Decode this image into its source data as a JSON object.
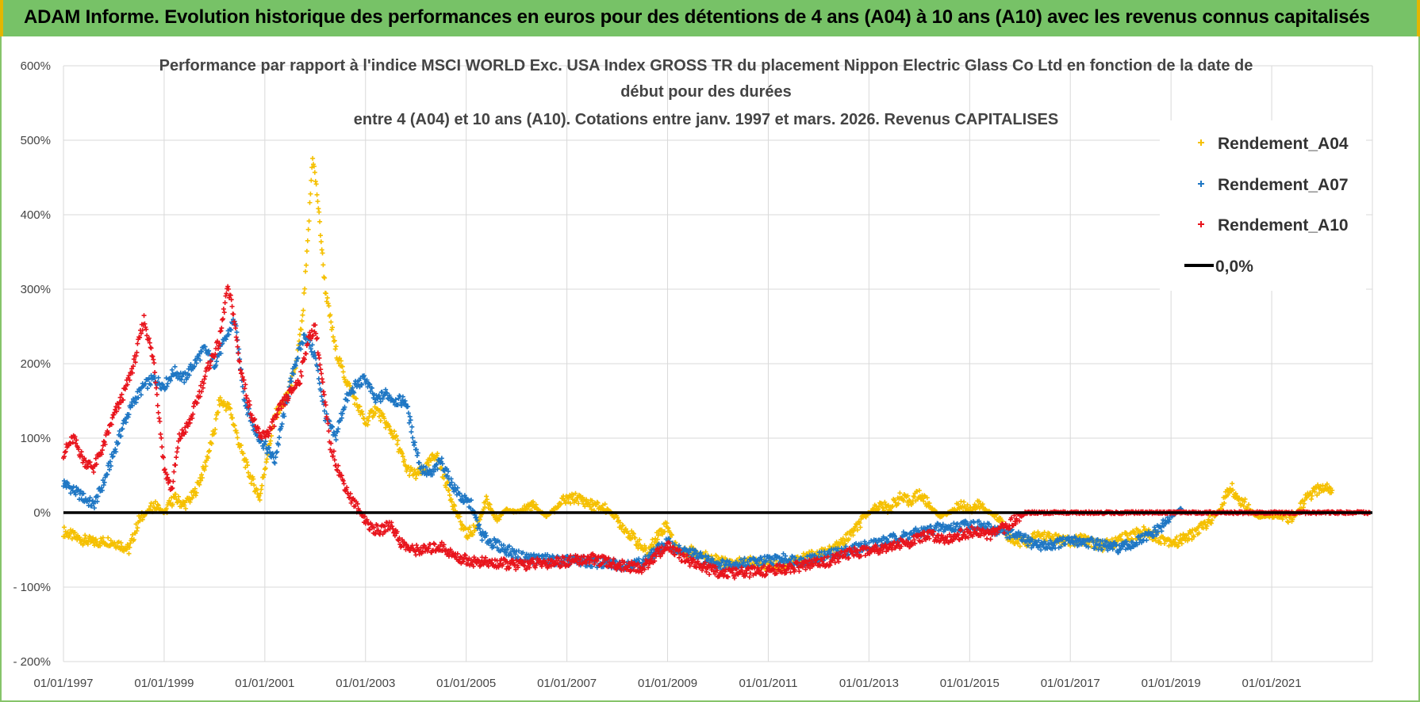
{
  "banner": {
    "title": "ADAM Informe. Evolution historique des performances en euros pour des détentions de 4 ans (A04) à 10 ans (A10) avec les revenus connus capitalisés"
  },
  "colors": {
    "banner_bg": "#77c267",
    "A04": "#f5c000",
    "A07": "#1f77c4",
    "A10": "#e8141c",
    "zero_line": "#000000"
  },
  "chart_data": {
    "type": "scatter",
    "title_lines": [
      "Performance par rapport à l'indice MSCI WORLD Exc. USA Index GROSS TR  du placement Nippon Electric Glass Co Ltd en fonction de la date de",
      "début pour des durées",
      "entre 4 (A04) et 10 ans (A10).  Cotations entre janv. 1997 et mars. 2026. Revenus CAPITALISES"
    ],
    "xlabel": "",
    "ylabel": "",
    "x_range": [
      1997.0,
      2023.0
    ],
    "x_ticks": [
      1997,
      1999,
      2001,
      2003,
      2005,
      2007,
      2009,
      2011,
      2013,
      2015,
      2017,
      2019,
      2021
    ],
    "x_tick_labels": [
      "01/01/1997",
      "01/01/1999",
      "01/01/2001",
      "01/01/2003",
      "01/01/2005",
      "01/01/2007",
      "01/01/2009",
      "01/01/2011",
      "01/01/2013",
      "01/01/2015",
      "01/01/2017",
      "01/01/2019",
      "01/01/2021"
    ],
    "ylim": [
      -200,
      600
    ],
    "y_ticks": [
      -200,
      -100,
      0,
      100,
      200,
      300,
      400,
      500,
      600
    ],
    "y_tick_labels": [
      "- 200%",
      "- 100%",
      "0%",
      "100%",
      "200%",
      "300%",
      "400%",
      "500%",
      "600%"
    ],
    "grid": true,
    "legend_position": "top-right",
    "series": [
      {
        "name": "Rendement_A04",
        "marker": "+",
        "color": "#f5c000",
        "points": [
          [
            1997.0,
            -25
          ],
          [
            1997.3,
            -35
          ],
          [
            1997.6,
            -40
          ],
          [
            1997.9,
            -38
          ],
          [
            1998.1,
            -42
          ],
          [
            1998.3,
            -50
          ],
          [
            1998.5,
            -10
          ],
          [
            1998.8,
            10
          ],
          [
            1999.0,
            0
          ],
          [
            1999.2,
            20
          ],
          [
            1999.4,
            10
          ],
          [
            1999.6,
            25
          ],
          [
            1999.8,
            60
          ],
          [
            2000.0,
            110
          ],
          [
            2000.1,
            150
          ],
          [
            2000.3,
            140
          ],
          [
            2000.5,
            90
          ],
          [
            2000.7,
            50
          ],
          [
            2000.9,
            20
          ],
          [
            2001.0,
            60
          ],
          [
            2001.2,
            130
          ],
          [
            2001.4,
            150
          ],
          [
            2001.6,
            190
          ],
          [
            2001.75,
            260
          ],
          [
            2001.85,
            360
          ],
          [
            2001.95,
            480
          ],
          [
            2002.05,
            420
          ],
          [
            2002.2,
            300
          ],
          [
            2002.4,
            220
          ],
          [
            2002.6,
            180
          ],
          [
            2002.8,
            150
          ],
          [
            2003.0,
            120
          ],
          [
            2003.2,
            140
          ],
          [
            2003.4,
            120
          ],
          [
            2003.6,
            100
          ],
          [
            2003.8,
            60
          ],
          [
            2004.0,
            50
          ],
          [
            2004.2,
            60
          ],
          [
            2004.4,
            80
          ],
          [
            2004.6,
            40
          ],
          [
            2004.8,
            0
          ],
          [
            2005.0,
            -30
          ],
          [
            2005.2,
            -20
          ],
          [
            2005.4,
            15
          ],
          [
            2005.6,
            -10
          ],
          [
            2005.8,
            5
          ],
          [
            2006.0,
            0
          ],
          [
            2006.3,
            10
          ],
          [
            2006.6,
            -5
          ],
          [
            2006.9,
            15
          ],
          [
            2007.2,
            20
          ],
          [
            2007.5,
            10
          ],
          [
            2007.8,
            5
          ],
          [
            2008.0,
            -10
          ],
          [
            2008.2,
            -25
          ],
          [
            2008.4,
            -40
          ],
          [
            2008.6,
            -55
          ],
          [
            2008.8,
            -30
          ],
          [
            2009.0,
            -15
          ],
          [
            2009.1,
            -40
          ],
          [
            2009.3,
            -55
          ],
          [
            2009.5,
            -50
          ],
          [
            2009.8,
            -60
          ],
          [
            2010.0,
            -65
          ],
          [
            2010.3,
            -70
          ],
          [
            2010.6,
            -65
          ],
          [
            2010.9,
            -70
          ],
          [
            2011.2,
            -72
          ],
          [
            2011.5,
            -65
          ],
          [
            2011.8,
            -58
          ],
          [
            2012.1,
            -55
          ],
          [
            2012.4,
            -45
          ],
          [
            2012.7,
            -25
          ],
          [
            2013.0,
            0
          ],
          [
            2013.2,
            10
          ],
          [
            2013.4,
            5
          ],
          [
            2013.6,
            20
          ],
          [
            2013.8,
            15
          ],
          [
            2014.0,
            25
          ],
          [
            2014.2,
            10
          ],
          [
            2014.4,
            -5
          ],
          [
            2014.6,
            0
          ],
          [
            2014.8,
            10
          ],
          [
            2015.0,
            5
          ],
          [
            2015.2,
            10
          ],
          [
            2015.4,
            0
          ],
          [
            2015.6,
            -10
          ],
          [
            2015.8,
            -35
          ],
          [
            2016.1,
            -40
          ],
          [
            2016.4,
            -30
          ],
          [
            2016.7,
            -35
          ],
          [
            2017.0,
            -40
          ],
          [
            2017.3,
            -35
          ],
          [
            2017.6,
            -45
          ],
          [
            2017.9,
            -40
          ],
          [
            2018.2,
            -30
          ],
          [
            2018.5,
            -25
          ],
          [
            2018.8,
            -35
          ],
          [
            2019.1,
            -40
          ],
          [
            2019.4,
            -30
          ],
          [
            2019.7,
            -15
          ],
          [
            2020.0,
            5
          ],
          [
            2020.1,
            25
          ],
          [
            2020.2,
            35
          ],
          [
            2020.3,
            20
          ],
          [
            2020.5,
            10
          ],
          [
            2020.7,
            -5
          ],
          [
            2020.9,
            -5
          ],
          [
            2021.2,
            -5
          ],
          [
            2021.4,
            -10
          ],
          [
            2021.5,
            0
          ],
          [
            2021.7,
            20
          ],
          [
            2021.9,
            30
          ],
          [
            2022.1,
            35
          ],
          [
            2022.2,
            30
          ]
        ]
      },
      {
        "name": "Rendement_A07",
        "marker": "+",
        "color": "#1f77c4",
        "points": [
          [
            1997.0,
            40
          ],
          [
            1997.2,
            30
          ],
          [
            1997.4,
            20
          ],
          [
            1997.6,
            10
          ],
          [
            1997.8,
            40
          ],
          [
            1998.0,
            80
          ],
          [
            1998.2,
            120
          ],
          [
            1998.4,
            150
          ],
          [
            1998.6,
            170
          ],
          [
            1998.8,
            180
          ],
          [
            1999.0,
            170
          ],
          [
            1999.2,
            190
          ],
          [
            1999.4,
            180
          ],
          [
            1999.6,
            200
          ],
          [
            1999.8,
            220
          ],
          [
            2000.0,
            200
          ],
          [
            2000.2,
            230
          ],
          [
            2000.4,
            260
          ],
          [
            2000.6,
            150
          ],
          [
            2000.8,
            110
          ],
          [
            2001.0,
            90
          ],
          [
            2001.2,
            70
          ],
          [
            2001.4,
            140
          ],
          [
            2001.6,
            200
          ],
          [
            2001.8,
            240
          ],
          [
            2002.0,
            210
          ],
          [
            2002.2,
            130
          ],
          [
            2002.4,
            100
          ],
          [
            2002.6,
            150
          ],
          [
            2002.8,
            170
          ],
          [
            2003.0,
            180
          ],
          [
            2003.2,
            150
          ],
          [
            2003.4,
            160
          ],
          [
            2003.6,
            150
          ],
          [
            2003.8,
            150
          ],
          [
            2003.95,
            100
          ],
          [
            2004.1,
            60
          ],
          [
            2004.3,
            50
          ],
          [
            2004.5,
            70
          ],
          [
            2004.7,
            40
          ],
          [
            2004.9,
            20
          ],
          [
            2005.1,
            10
          ],
          [
            2005.3,
            -30
          ],
          [
            2005.5,
            -40
          ],
          [
            2005.8,
            -50
          ],
          [
            2006.1,
            -60
          ],
          [
            2006.5,
            -62
          ],
          [
            2006.9,
            -65
          ],
          [
            2007.3,
            -65
          ],
          [
            2007.7,
            -68
          ],
          [
            2008.1,
            -70
          ],
          [
            2008.5,
            -68
          ],
          [
            2008.8,
            -50
          ],
          [
            2009.0,
            -40
          ],
          [
            2009.2,
            -50
          ],
          [
            2009.5,
            -55
          ],
          [
            2009.8,
            -65
          ],
          [
            2010.1,
            -70
          ],
          [
            2010.5,
            -68
          ],
          [
            2010.9,
            -65
          ],
          [
            2011.3,
            -62
          ],
          [
            2011.7,
            -65
          ],
          [
            2012.0,
            -60
          ],
          [
            2012.3,
            -55
          ],
          [
            2012.6,
            -50
          ],
          [
            2012.9,
            -45
          ],
          [
            2013.2,
            -40
          ],
          [
            2013.5,
            -35
          ],
          [
            2013.8,
            -30
          ],
          [
            2014.1,
            -25
          ],
          [
            2014.4,
            -20
          ],
          [
            2014.7,
            -20
          ],
          [
            2015.0,
            -15
          ],
          [
            2015.3,
            -20
          ],
          [
            2015.6,
            -25
          ],
          [
            2015.9,
            -30
          ],
          [
            2016.2,
            -40
          ],
          [
            2016.5,
            -45
          ],
          [
            2016.8,
            -40
          ],
          [
            2017.1,
            -38
          ],
          [
            2017.4,
            -40
          ],
          [
            2017.7,
            -45
          ],
          [
            2018.0,
            -48
          ],
          [
            2018.3,
            -40
          ],
          [
            2018.6,
            -30
          ],
          [
            2018.8,
            -20
          ],
          [
            2019.0,
            -5
          ],
          [
            2019.1,
            0
          ],
          [
            2019.2,
            5
          ]
        ]
      },
      {
        "name": "Rendement_A10",
        "marker": "+",
        "color": "#e8141c",
        "points": [
          [
            1997.0,
            80
          ],
          [
            1997.2,
            100
          ],
          [
            1997.4,
            70
          ],
          [
            1997.6,
            60
          ],
          [
            1997.8,
            90
          ],
          [
            1998.0,
            130
          ],
          [
            1998.2,
            160
          ],
          [
            1998.4,
            200
          ],
          [
            1998.6,
            260
          ],
          [
            1998.8,
            200
          ],
          [
            1999.0,
            60
          ],
          [
            1999.15,
            30
          ],
          [
            1999.3,
            100
          ],
          [
            1999.5,
            120
          ],
          [
            1999.7,
            160
          ],
          [
            1999.9,
            200
          ],
          [
            2000.1,
            230
          ],
          [
            2000.25,
            300
          ],
          [
            2000.35,
            280
          ],
          [
            2000.5,
            200
          ],
          [
            2000.7,
            140
          ],
          [
            2000.9,
            100
          ],
          [
            2001.1,
            110
          ],
          [
            2001.3,
            140
          ],
          [
            2001.5,
            160
          ],
          [
            2001.7,
            180
          ],
          [
            2001.85,
            230
          ],
          [
            2002.0,
            250
          ],
          [
            2002.15,
            170
          ],
          [
            2002.3,
            90
          ],
          [
            2002.5,
            50
          ],
          [
            2002.7,
            20
          ],
          [
            2002.9,
            0
          ],
          [
            2003.1,
            -20
          ],
          [
            2003.3,
            -25
          ],
          [
            2003.5,
            -15
          ],
          [
            2003.7,
            -40
          ],
          [
            2003.9,
            -50
          ],
          [
            2004.2,
            -50
          ],
          [
            2004.5,
            -45
          ],
          [
            2004.8,
            -60
          ],
          [
            2005.1,
            -65
          ],
          [
            2005.5,
            -68
          ],
          [
            2006.0,
            -70
          ],
          [
            2006.5,
            -68
          ],
          [
            2007.0,
            -65
          ],
          [
            2007.5,
            -62
          ],
          [
            2008.0,
            -70
          ],
          [
            2008.5,
            -75
          ],
          [
            2008.8,
            -55
          ],
          [
            2009.0,
            -45
          ],
          [
            2009.3,
            -60
          ],
          [
            2009.6,
            -70
          ],
          [
            2009.9,
            -78
          ],
          [
            2010.2,
            -82
          ],
          [
            2010.6,
            -80
          ],
          [
            2011.0,
            -78
          ],
          [
            2011.4,
            -75
          ],
          [
            2011.8,
            -70
          ],
          [
            2012.2,
            -65
          ],
          [
            2012.6,
            -55
          ],
          [
            2013.0,
            -50
          ],
          [
            2013.4,
            -45
          ],
          [
            2013.8,
            -40
          ],
          [
            2014.2,
            -30
          ],
          [
            2014.5,
            -35
          ],
          [
            2014.8,
            -30
          ],
          [
            2015.1,
            -25
          ],
          [
            2015.4,
            -30
          ],
          [
            2015.7,
            -20
          ],
          [
            2015.9,
            -10
          ],
          [
            2016.1,
            0
          ],
          [
            2016.6,
            0
          ],
          [
            2017.1,
            0
          ],
          [
            2017.6,
            0
          ],
          [
            2018.1,
            0
          ],
          [
            2018.6,
            0
          ],
          [
            2019.1,
            0
          ],
          [
            2019.6,
            0
          ],
          [
            2020.1,
            0
          ],
          [
            2020.6,
            0
          ],
          [
            2021.1,
            0
          ],
          [
            2021.6,
            0
          ],
          [
            2022.1,
            0
          ],
          [
            2022.6,
            0
          ],
          [
            2022.95,
            0
          ]
        ]
      }
    ],
    "reference_line": {
      "name": "0,0%",
      "value": 0
    }
  }
}
